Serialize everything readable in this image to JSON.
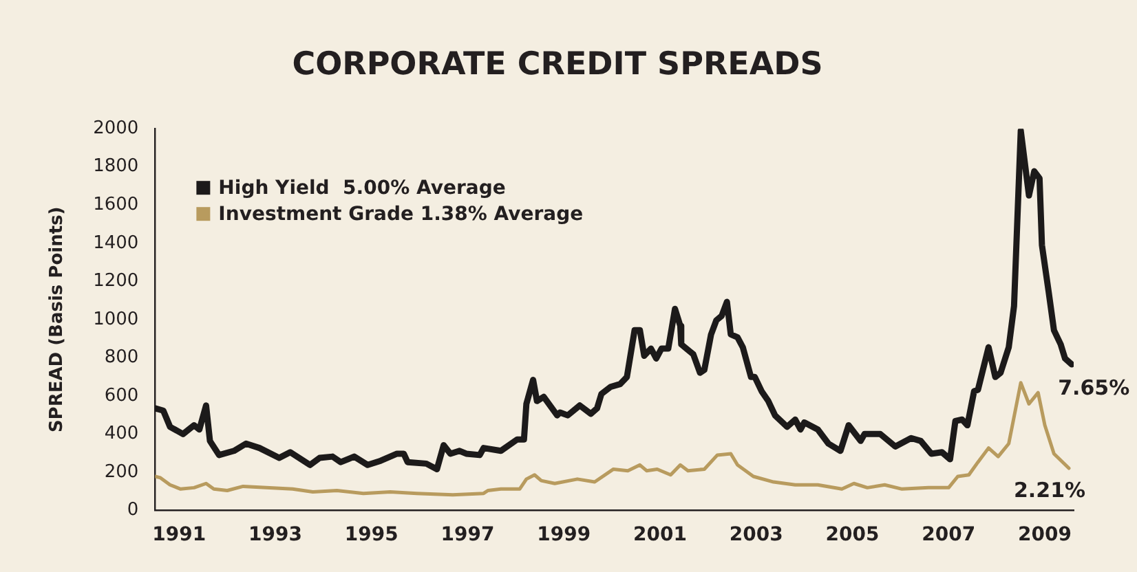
{
  "chart_data": {
    "type": "line",
    "title": "CORPORATE CREDIT SPREADS",
    "ylabel": "SPREAD (Basis Points)",
    "xlim": [
      1990.5,
      2009.6
    ],
    "xticks": [
      1991,
      1993,
      1995,
      1997,
      1999,
      2001,
      2003,
      2005,
      2007,
      2009
    ],
    "ylim": [
      0,
      2000
    ],
    "yticks": [
      0,
      200,
      400,
      600,
      800,
      1000,
      1200,
      1400,
      1600,
      1800,
      2000
    ],
    "grid": false,
    "legend": "top left",
    "marker": "none",
    "line_style": "solid",
    "series": [
      {
        "name": "High Yield  5.00% Average",
        "color": "#1c1a1a",
        "x": [
          1990.5,
          1990.67,
          1990.81,
          1991.08,
          1991.31,
          1991.42,
          1991.56,
          1991.64,
          1991.83,
          1992.14,
          1992.39,
          1992.67,
          1993.08,
          1993.31,
          1993.72,
          1993.92,
          1994.19,
          1994.36,
          1994.64,
          1994.92,
          1995.19,
          1995.53,
          1995.67,
          1995.75,
          1996.14,
          1996.36,
          1996.5,
          1996.64,
          1996.83,
          1996.97,
          1997.25,
          1997.33,
          1997.69,
          1998.03,
          1998.17,
          1998.22,
          1998.36,
          1998.44,
          1998.58,
          1998.86,
          1998.92,
          1999.08,
          1999.33,
          1999.56,
          1999.69,
          1999.78,
          1999.97,
          2000.17,
          2000.31,
          2000.47,
          2000.58,
          2000.67,
          2000.81,
          2000.92,
          2001.03,
          2001.17,
          2001.31,
          2001.42,
          2001.44,
          2001.69,
          2001.83,
          2001.92,
          2002.06,
          2002.17,
          2002.28,
          2002.39,
          2002.47,
          2002.61,
          2002.72,
          2002.89,
          2002.97,
          2003.11,
          2003.25,
          2003.39,
          2003.64,
          2003.81,
          2003.92,
          2004.0,
          2004.28,
          2004.5,
          2004.75,
          2004.92,
          2005.17,
          2005.25,
          2005.58,
          2005.89,
          2006.22,
          2006.42,
          2006.64,
          2006.86,
          2007.03,
          2007.14,
          2007.28,
          2007.39,
          2007.53,
          2007.61,
          2007.83,
          2007.97,
          2008.08,
          2008.25,
          2008.36,
          2008.5,
          2008.67,
          2008.78,
          2008.89,
          2008.94,
          2009.08,
          2009.19,
          2009.33,
          2009.42,
          2009.56
        ],
        "values": [
          535,
          523,
          438,
          400,
          446,
          424,
          550,
          364,
          290,
          312,
          350,
          327,
          275,
          305,
          238,
          275,
          282,
          253,
          282,
          238,
          260,
          297,
          297,
          253,
          245,
          216,
          342,
          297,
          312,
          297,
          290,
          327,
          312,
          372,
          372,
          558,
          684,
          573,
          595,
          498,
          513,
          498,
          550,
          506,
          535,
          610,
          647,
          662,
          699,
          944,
          944,
          810,
          848,
          796,
          848,
          848,
          1056,
          967,
          870,
          818,
          721,
          736,
          922,
          996,
          1019,
          1093,
          922,
          907,
          855,
          699,
          699,
          625,
          573,
          498,
          438,
          476,
          424,
          461,
          424,
          350,
          312,
          446,
          364,
          400,
          400,
          335,
          379,
          364,
          297,
          305,
          268,
          468,
          476,
          446,
          625,
          632,
          855,
          699,
          721,
          855,
          1071,
          1990,
          1650,
          1777,
          1740,
          1390,
          1145,
          944,
          870,
          796,
          765
        ]
      },
      {
        "name": "Investment Grade 1.38% Average",
        "color": "#b89b5e",
        "x": [
          1990.5,
          1990.61,
          1990.81,
          1991.03,
          1991.31,
          1991.56,
          1991.72,
          1992.0,
          1992.33,
          1992.81,
          1993.36,
          1993.78,
          1994.28,
          1994.83,
          1995.39,
          1995.94,
          1996.69,
          1997.33,
          1997.42,
          1997.69,
          1998.08,
          1998.22,
          1998.39,
          1998.53,
          1998.81,
          1999.28,
          1999.64,
          2000.03,
          2000.33,
          2000.58,
          2000.72,
          2000.94,
          2001.22,
          2001.42,
          2001.58,
          2001.92,
          2002.19,
          2002.47,
          2002.61,
          2002.94,
          2003.36,
          2003.81,
          2004.28,
          2004.78,
          2005.03,
          2005.31,
          2005.67,
          2006.03,
          2006.58,
          2007.0,
          2007.19,
          2007.42,
          2007.61,
          2007.83,
          2008.03,
          2008.25,
          2008.5,
          2008.67,
          2008.86,
          2009.0,
          2009.19,
          2009.5
        ],
        "values": [
          178,
          171,
          134,
          112,
          119,
          141,
          112,
          104,
          126,
          119,
          112,
          97,
          104,
          89,
          97,
          89,
          82,
          89,
          104,
          112,
          112,
          164,
          186,
          156,
          141,
          164,
          149,
          216,
          208,
          238,
          208,
          216,
          186,
          238,
          208,
          216,
          290,
          297,
          238,
          178,
          149,
          134,
          134,
          112,
          141,
          119,
          134,
          112,
          119,
          119,
          178,
          186,
          253,
          327,
          282,
          350,
          669,
          558,
          617,
          446,
          297,
          221
        ]
      }
    ],
    "annotations": [
      {
        "text": "7.65%",
        "x": 2009.56,
        "y": 765
      },
      {
        "text": "2.21%",
        "x": 2009.5,
        "y": 221
      }
    ]
  }
}
